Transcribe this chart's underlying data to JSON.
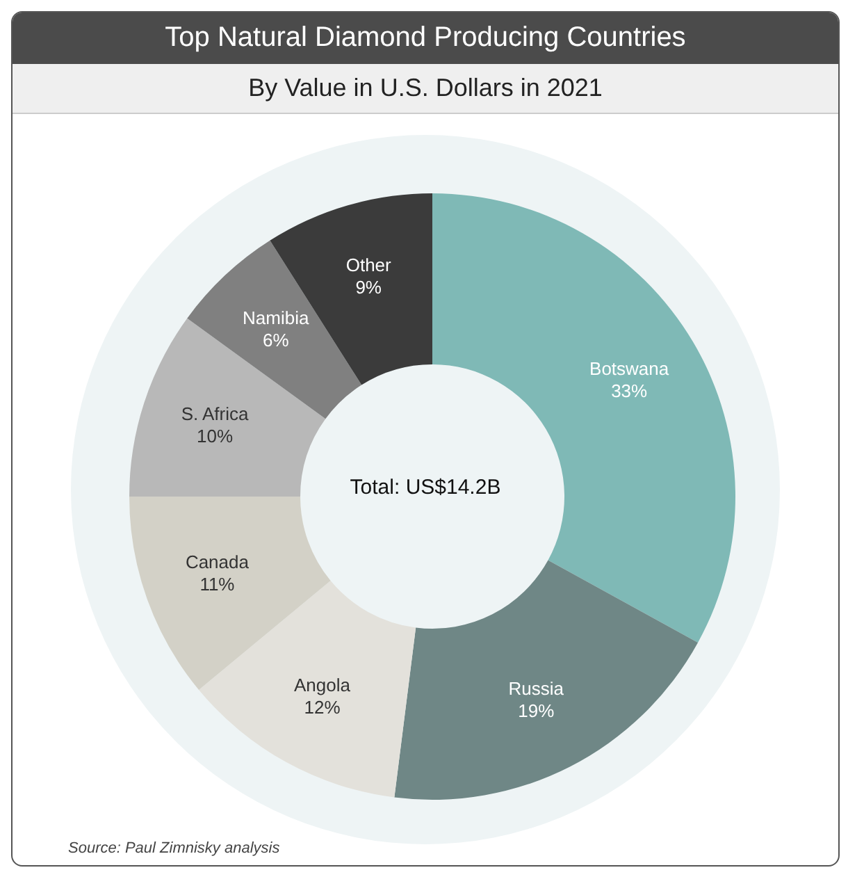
{
  "chart_data": {
    "type": "donut",
    "title": "Top Natural Diamond Producing Countries",
    "subtitle": "By Value in U.S. Dollars in 2021",
    "categories": [
      "Botswana",
      "Russia",
      "Angola",
      "Canada",
      "S. Africa",
      "Namibia",
      "Other"
    ],
    "values": [
      33,
      19,
      12,
      11,
      10,
      6,
      9
    ],
    "value_labels": [
      "33%",
      "19%",
      "12%",
      "11%",
      "10%",
      "6%",
      "9%"
    ],
    "colors": [
      "#7fb9b6",
      "#6f8786",
      "#e3e1db",
      "#d3d1c7",
      "#b8b8b8",
      "#808080",
      "#3b3b3b"
    ],
    "annotations": [
      "Total: US$14.2B",
      "Source: Paul Zimnisky analysis"
    ]
  }
}
